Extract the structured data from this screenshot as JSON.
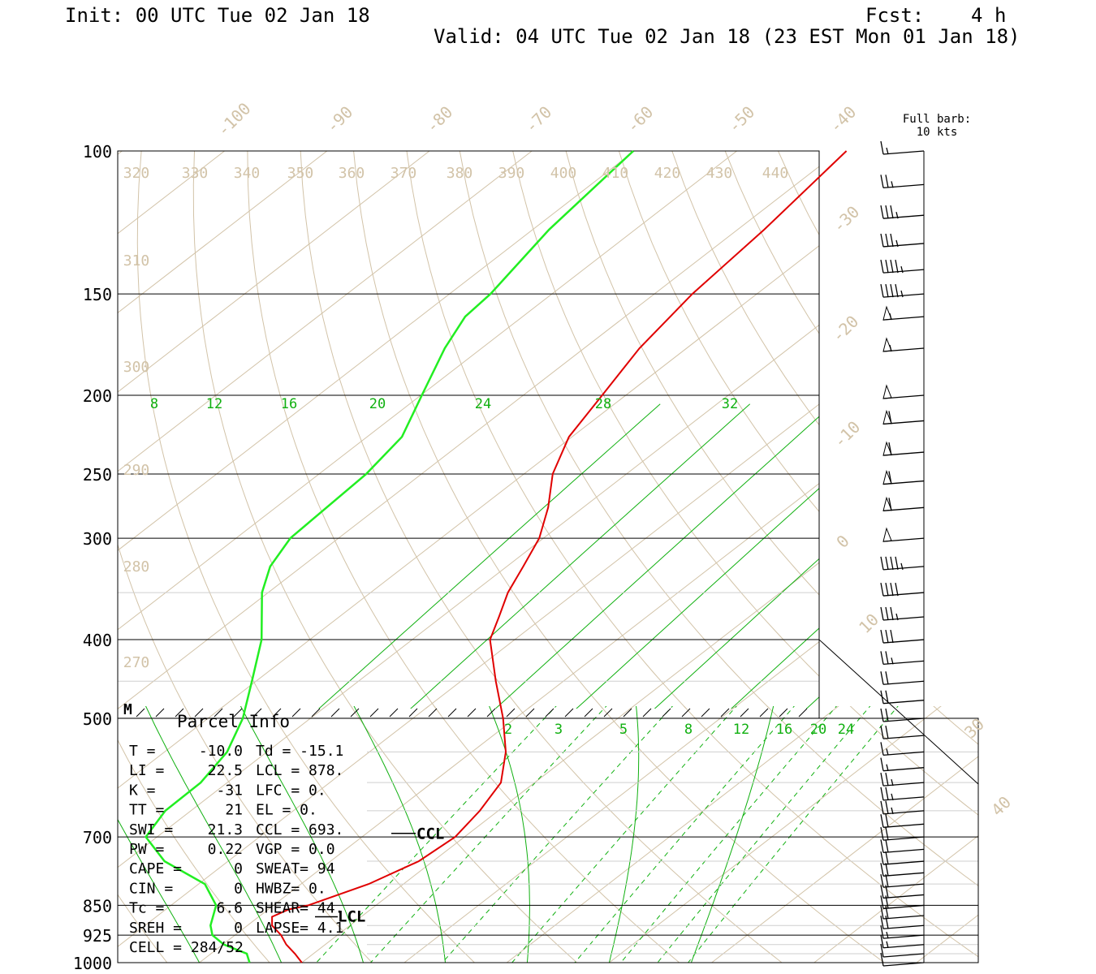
{
  "header": {
    "init": "Init: 00 UTC Tue 02 Jan 18",
    "fcst": "Fcst:    4 h",
    "valid": "Valid: 04 UTC Tue 02 Jan 18 (23 EST Mon 01 Jan 18)"
  },
  "colors": {
    "temperature": "#e00000",
    "dewpoint": "#22ee22",
    "isotherm": "#d2c3a8",
    "mixing_ratio": "#10b010",
    "grid": "#000000"
  },
  "chart_data": {
    "type": "skew-t log-p sounding",
    "pressure_ticks": [
      100,
      150,
      200,
      250,
      300,
      400,
      500,
      700,
      850,
      925,
      1000
    ],
    "isotherm_labels": [
      "-100",
      "-90",
      "-80",
      "-70",
      "-60",
      "-50",
      "-40",
      "-30",
      "-20",
      "-10",
      "0",
      "10",
      "30",
      "40"
    ],
    "theta_labels_top": [
      "320",
      "330",
      "340",
      "350",
      "360",
      "370",
      "380",
      "390",
      "400",
      "410",
      "420",
      "430",
      "440"
    ],
    "theta_labels_left": [
      "310",
      "300",
      "290",
      "280",
      "270"
    ],
    "mixing_ratio_labels_upper": [
      "8",
      "12",
      "16",
      "20",
      "24",
      "28",
      "32"
    ],
    "mixing_ratio_labels_lower": [
      "2",
      "3",
      "5",
      "8",
      "12",
      "16",
      "20",
      "24"
    ],
    "barb_legend": [
      "Full barb:",
      "10 kts"
    ],
    "level_markers": {
      "ccl": "CCL",
      "lcl": "LCL",
      "m": "M"
    },
    "temperature_profile": [
      {
        "p": 1000,
        "t": -10.0
      },
      {
        "p": 975,
        "t": -11.8
      },
      {
        "p": 950,
        "t": -13.8
      },
      {
        "p": 925,
        "t": -15.5
      },
      {
        "p": 900,
        "t": -17.6
      },
      {
        "p": 878,
        "t": -18.7
      },
      {
        "p": 860,
        "t": -18.0
      },
      {
        "p": 850,
        "t": -16.6
      },
      {
        "p": 800,
        "t": -13.4
      },
      {
        "p": 750,
        "t": -11.4
      },
      {
        "p": 700,
        "t": -10.9
      },
      {
        "p": 650,
        "t": -11.8
      },
      {
        "p": 600,
        "t": -13.3
      },
      {
        "p": 550,
        "t": -16.7
      },
      {
        "p": 500,
        "t": -21.2
      },
      {
        "p": 450,
        "t": -26.6
      },
      {
        "p": 400,
        "t": -32.4
      },
      {
        "p": 375,
        "t": -34.4
      },
      {
        "p": 350,
        "t": -36.6
      },
      {
        "p": 325,
        "t": -38.4
      },
      {
        "p": 300,
        "t": -40.4
      },
      {
        "p": 275,
        "t": -43.4
      },
      {
        "p": 250,
        "t": -47.2
      },
      {
        "p": 225,
        "t": -50.3
      },
      {
        "p": 200,
        "t": -52.3
      },
      {
        "p": 175,
        "t": -54.6
      },
      {
        "p": 150,
        "t": -56.3
      },
      {
        "p": 125,
        "t": -57.4
      },
      {
        "p": 100,
        "t": -59.3
      }
    ],
    "dewpoint_profile": [
      {
        "p": 1000,
        "t": -15.1
      },
      {
        "p": 975,
        "t": -16.5
      },
      {
        "p": 950,
        "t": -19.9
      },
      {
        "p": 925,
        "t": -22.2
      },
      {
        "p": 900,
        "t": -23.6
      },
      {
        "p": 850,
        "t": -25.6
      },
      {
        "p": 800,
        "t": -29.4
      },
      {
        "p": 750,
        "t": -36.2
      },
      {
        "p": 700,
        "t": -41.1
      },
      {
        "p": 650,
        "t": -42.5
      },
      {
        "p": 600,
        "t": -42.6
      },
      {
        "p": 550,
        "t": -43.9
      },
      {
        "p": 500,
        "t": -46.6
      },
      {
        "p": 450,
        "t": -50.4
      },
      {
        "p": 400,
        "t": -54.7
      },
      {
        "p": 350,
        "t": -60.6
      },
      {
        "p": 325,
        "t": -63.1
      },
      {
        "p": 300,
        "t": -64.7
      },
      {
        "p": 250,
        "t": -65.4
      },
      {
        "p": 225,
        "t": -66.6
      },
      {
        "p": 200,
        "t": -69.9
      },
      {
        "p": 175,
        "t": -73.6
      },
      {
        "p": 160,
        "t": -75.6
      },
      {
        "p": 150,
        "t": -76.0
      },
      {
        "p": 125,
        "t": -78.4
      },
      {
        "p": 100,
        "t": -80.1
      }
    ],
    "wind_barbs": [
      {
        "p": 100,
        "kts": 15
      },
      {
        "p": 110,
        "kts": 25
      },
      {
        "p": 120,
        "kts": 35
      },
      {
        "p": 130,
        "kts": 35
      },
      {
        "p": 140,
        "kts": 45
      },
      {
        "p": 150,
        "kts": 45
      },
      {
        "p": 160,
        "kts": 55
      },
      {
        "p": 175,
        "kts": 55
      },
      {
        "p": 200,
        "kts": 50
      },
      {
        "p": 215,
        "kts": 60
      },
      {
        "p": 235,
        "kts": 60
      },
      {
        "p": 255,
        "kts": 60
      },
      {
        "p": 275,
        "kts": 60
      },
      {
        "p": 300,
        "kts": 50
      },
      {
        "p": 325,
        "kts": 45
      },
      {
        "p": 350,
        "kts": 40
      },
      {
        "p": 375,
        "kts": 35
      },
      {
        "p": 400,
        "kts": 30
      },
      {
        "p": 425,
        "kts": 25
      },
      {
        "p": 450,
        "kts": 20
      },
      {
        "p": 475,
        "kts": 20
      },
      {
        "p": 500,
        "kts": 20
      },
      {
        "p": 525,
        "kts": 20
      },
      {
        "p": 550,
        "kts": 15
      },
      {
        "p": 575,
        "kts": 15
      },
      {
        "p": 600,
        "kts": 25
      },
      {
        "p": 625,
        "kts": 25
      },
      {
        "p": 650,
        "kts": 25
      },
      {
        "p": 675,
        "kts": 20
      },
      {
        "p": 700,
        "kts": 20
      },
      {
        "p": 725,
        "kts": 20
      },
      {
        "p": 750,
        "kts": 20
      },
      {
        "p": 775,
        "kts": 20
      },
      {
        "p": 800,
        "kts": 20
      },
      {
        "p": 825,
        "kts": 20
      },
      {
        "p": 850,
        "kts": 20
      },
      {
        "p": 875,
        "kts": 20
      },
      {
        "p": 900,
        "kts": 20
      },
      {
        "p": 925,
        "kts": 15
      },
      {
        "p": 950,
        "kts": 15
      },
      {
        "p": 975,
        "kts": 10
      },
      {
        "p": 1000,
        "kts": 10
      }
    ]
  },
  "parcel_info": {
    "title": "Parcel Info",
    "rows": [
      [
        "T  =",
        "-10.0",
        "Td = -15.1"
      ],
      [
        "LI =",
        "22.5",
        "LCL =  878."
      ],
      [
        "K  =",
        "-31",
        "LFC =    0."
      ],
      [
        "TT =",
        "21",
        "EL  =    0."
      ],
      [
        "SWI =",
        "21.3",
        "CCL =  693."
      ],
      [
        "PW =",
        "0.22",
        "VGP =   0.0"
      ],
      [
        "CAPE =",
        "0",
        "SWEAT=   94"
      ],
      [
        "CIN =",
        "0",
        "HWBZ=    0."
      ],
      [
        "Tc =",
        "6.6",
        "SHEAR=  44."
      ],
      [
        "SREH =",
        "0",
        "LAPSE=  4.1"
      ],
      [
        "CELL = 284/52",
        "",
        ""
      ]
    ]
  }
}
